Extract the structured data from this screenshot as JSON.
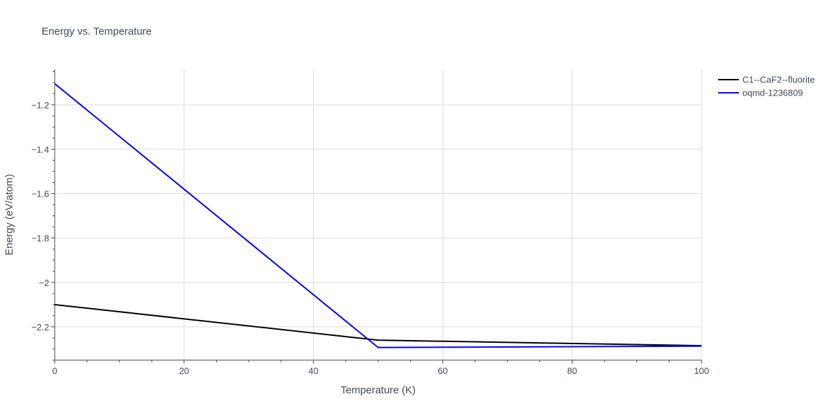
{
  "chart_data": {
    "type": "line",
    "title": "Energy vs. Temperature",
    "xlabel": "Temperature (K)",
    "ylabel": "Energy (eV/atom)",
    "xlim": [
      0,
      100
    ],
    "ylim": [
      -2.35,
      -1.04
    ],
    "x_ticks": [
      0,
      20,
      40,
      60,
      80,
      100
    ],
    "y_ticks": [
      -2.2,
      -2,
      -1.8,
      -1.6,
      -1.4,
      -1.2
    ],
    "x_tick_labels": [
      "0",
      "20",
      "40",
      "60",
      "80",
      "100"
    ],
    "y_tick_labels": [
      "−2.2",
      "−2",
      "−1.8",
      "−1.6",
      "−1.4",
      "−1.2"
    ],
    "grid": true,
    "legend_position": "top-right",
    "series": [
      {
        "name": "C1--CaF2--fluorite",
        "color": "#000000",
        "x": [
          0,
          50,
          100
        ],
        "y": [
          -2.1,
          -2.26,
          -2.285
        ]
      },
      {
        "name": "oqmd-1236809",
        "color": "#0000ff",
        "x": [
          0,
          50,
          100
        ],
        "y": [
          -1.105,
          -2.293,
          -2.287
        ]
      }
    ]
  }
}
